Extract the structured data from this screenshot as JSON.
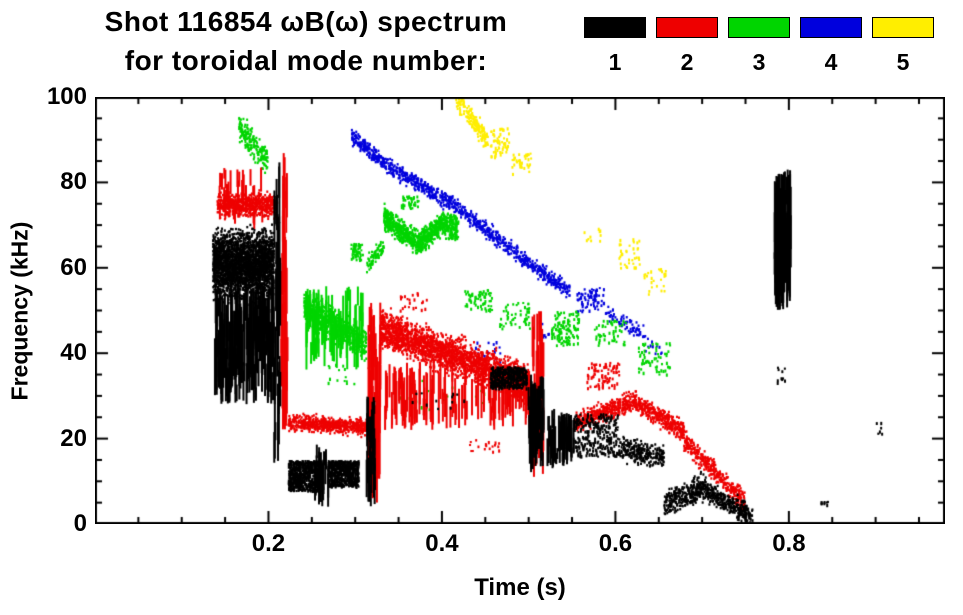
{
  "title_line1": "Shot 116854 ωB(ω) spectrum",
  "title_line2": "for toroidal mode number:",
  "legend": {
    "items": [
      {
        "label": "1",
        "color": "#000000"
      },
      {
        "label": "2",
        "color": "#ee0000"
      },
      {
        "label": "3",
        "color": "#00d500"
      },
      {
        "label": "4",
        "color": "#0000dd"
      },
      {
        "label": "5",
        "color": "#ffee00"
      }
    ]
  },
  "chart_data": {
    "type": "scatter",
    "title": "Shot 116854 ωB(ω) spectrum for toroidal mode number 1-5",
    "xlabel": "Time (s)",
    "ylabel": "Frequency (kHz)",
    "xlim": [
      0,
      0.98
    ],
    "ylim": [
      0,
      100
    ],
    "xticks": [
      0.2,
      0.4,
      0.6,
      0.8
    ],
    "xtick_labels": [
      "0.2",
      "0.4",
      "0.6",
      "0.8"
    ],
    "yticks": [
      0,
      20,
      40,
      60,
      80,
      100
    ],
    "ytick_labels": [
      "0",
      "20",
      "40",
      "60",
      "80",
      "100"
    ],
    "x_minor_step": 0.05,
    "y_minor_step": 5,
    "grid": false,
    "legend_position": "top-right",
    "series": [
      {
        "name": "1",
        "color": "#000000"
      },
      {
        "name": "2",
        "color": "#ee0000"
      },
      {
        "name": "3",
        "color": "#00d500"
      },
      {
        "name": "4",
        "color": "#0000dd"
      },
      {
        "name": "5",
        "color": "#ffee00"
      }
    ],
    "clusters": [
      {
        "s": 0,
        "kind": "band",
        "t": [
          0.135,
          0.205
        ],
        "f": [
          61,
          61
        ],
        "sp": 7,
        "n": 2800
      },
      {
        "s": 0,
        "kind": "vlines",
        "t": [
          0.137,
          0.205
        ],
        "f": [
          28,
          56
        ],
        "n": 240,
        "seg": [
          3,
          14
        ]
      },
      {
        "s": 0,
        "kind": "vlines",
        "t": [
          0.205,
          0.213
        ],
        "f": [
          12,
          85
        ],
        "n": 36,
        "seg": [
          4,
          18
        ]
      },
      {
        "s": 0,
        "kind": "blob",
        "t": [
          0.222,
          0.262
        ],
        "f": [
          8,
          15
        ],
        "n": 650
      },
      {
        "s": 0,
        "kind": "blob",
        "t": [
          0.268,
          0.303
        ],
        "f": [
          9,
          15
        ],
        "n": 560
      },
      {
        "s": 0,
        "kind": "vlines",
        "t": [
          0.252,
          0.268
        ],
        "f": [
          4,
          19
        ],
        "n": 26,
        "seg": [
          2,
          8
        ]
      },
      {
        "s": 0,
        "kind": "vlines",
        "t": [
          0.312,
          0.322
        ],
        "f": [
          4,
          30
        ],
        "n": 34,
        "seg": [
          3,
          10
        ]
      },
      {
        "s": 0,
        "kind": "blob",
        "t": [
          0.455,
          0.497
        ],
        "f": [
          32,
          37
        ],
        "n": 420
      },
      {
        "s": 0,
        "kind": "vlines",
        "t": [
          0.498,
          0.516
        ],
        "f": [
          12,
          35
        ],
        "n": 55,
        "seg": [
          3,
          12
        ]
      },
      {
        "s": 0,
        "kind": "vlines",
        "t": [
          0.52,
          0.552
        ],
        "f": [
          13,
          27
        ],
        "n": 60,
        "seg": [
          2,
          9
        ]
      },
      {
        "s": 0,
        "kind": "blob",
        "t": [
          0.552,
          0.602
        ],
        "f": [
          16,
          26
        ],
        "n": 260
      },
      {
        "s": 0,
        "kind": "band",
        "t": [
          0.602,
          0.655
        ],
        "f": [
          18,
          16
        ],
        "sp": 2.5,
        "n": 280
      },
      {
        "s": 0,
        "kind": "band",
        "t": [
          0.655,
          0.703
        ],
        "f": [
          5,
          9
        ],
        "sp": 2.8,
        "n": 330
      },
      {
        "s": 0,
        "kind": "band",
        "t": [
          0.703,
          0.757
        ],
        "f": [
          8,
          2
        ],
        "sp": 2.4,
        "n": 330
      },
      {
        "s": 0,
        "kind": "vlines",
        "t": [
          0.782,
          0.801
        ],
        "f": [
          50,
          83
        ],
        "n": 120,
        "seg": [
          5,
          22
        ]
      },
      {
        "s": 0,
        "kind": "blob",
        "t": [
          0.785,
          0.795
        ],
        "f": [
          33,
          37
        ],
        "n": 10
      },
      {
        "s": 0,
        "kind": "blob",
        "t": [
          0.836,
          0.845
        ],
        "f": [
          3,
          6
        ],
        "n": 8
      },
      {
        "s": 0,
        "kind": "blob",
        "t": [
          0.36,
          0.43
        ],
        "f": [
          27,
          31
        ],
        "n": 12
      },
      {
        "s": 0,
        "kind": "blob",
        "t": [
          0.9,
          0.915
        ],
        "f": [
          21,
          24
        ],
        "n": 6
      },
      {
        "s": 1,
        "kind": "band",
        "t": [
          0.14,
          0.209
        ],
        "f": [
          75,
          75
        ],
        "sp": 2.6,
        "n": 650
      },
      {
        "s": 1,
        "kind": "vlines",
        "t": [
          0.142,
          0.195
        ],
        "f": [
          69,
          84
        ],
        "n": 40,
        "seg": [
          2,
          6
        ]
      },
      {
        "s": 1,
        "kind": "vlines",
        "t": [
          0.213,
          0.221
        ],
        "f": [
          20,
          87
        ],
        "n": 46,
        "seg": [
          4,
          18
        ]
      },
      {
        "s": 1,
        "kind": "band",
        "t": [
          0.222,
          0.312
        ],
        "f": [
          24,
          23
        ],
        "sp": 1.7,
        "n": 620
      },
      {
        "s": 1,
        "kind": "vlines",
        "t": [
          0.314,
          0.328
        ],
        "f": [
          5,
          52
        ],
        "n": 70,
        "seg": [
          5,
          20
        ]
      },
      {
        "s": 1,
        "kind": "band",
        "t": [
          0.328,
          0.5
        ],
        "f": [
          46,
          33
        ],
        "sp": 4,
        "n": 2400
      },
      {
        "s": 1,
        "kind": "vlines",
        "t": [
          0.332,
          0.5
        ],
        "f": [
          22,
          38
        ],
        "n": 130,
        "seg": [
          3,
          12
        ]
      },
      {
        "s": 1,
        "kind": "blob",
        "t": [
          0.34,
          0.385
        ],
        "f": [
          50,
          55
        ],
        "n": 24
      },
      {
        "s": 1,
        "kind": "vlines",
        "t": [
          0.503,
          0.516
        ],
        "f": [
          10,
          50
        ],
        "n": 44,
        "seg": [
          4,
          14
        ]
      },
      {
        "s": 1,
        "kind": "band",
        "t": [
          0.553,
          0.62
        ],
        "f": [
          24,
          29
        ],
        "sp": 2.1,
        "n": 400
      },
      {
        "s": 1,
        "kind": "band",
        "t": [
          0.62,
          0.678
        ],
        "f": [
          29,
          22
        ],
        "sp": 2.1,
        "n": 380
      },
      {
        "s": 1,
        "kind": "blob",
        "t": [
          0.565,
          0.605
        ],
        "f": [
          32,
          38
        ],
        "n": 80
      },
      {
        "s": 1,
        "kind": "band",
        "t": [
          0.678,
          0.748
        ],
        "f": [
          20,
          5
        ],
        "sp": 2.4,
        "n": 380
      },
      {
        "s": 1,
        "kind": "blob",
        "t": [
          0.43,
          0.465
        ],
        "f": [
          17,
          20
        ],
        "n": 18
      },
      {
        "s": 2,
        "kind": "band",
        "t": [
          0.165,
          0.198
        ],
        "f": [
          93,
          85
        ],
        "sp": 3,
        "n": 200
      },
      {
        "s": 2,
        "kind": "band",
        "t": [
          0.24,
          0.312
        ],
        "f": [
          51,
          42
        ],
        "sp": 3.5,
        "n": 650
      },
      {
        "s": 2,
        "kind": "vlines",
        "t": [
          0.242,
          0.31
        ],
        "f": [
          36,
          56
        ],
        "n": 80,
        "seg": [
          3,
          12
        ]
      },
      {
        "s": 2,
        "kind": "blob",
        "t": [
          0.294,
          0.308
        ],
        "f": [
          62,
          66
        ],
        "n": 55
      },
      {
        "s": 2,
        "kind": "band",
        "t": [
          0.312,
          0.332
        ],
        "f": [
          61,
          65
        ],
        "sp": 1.8,
        "n": 80
      },
      {
        "s": 2,
        "kind": "band",
        "t": [
          0.332,
          0.372
        ],
        "f": [
          72,
          66
        ],
        "sp": 2.4,
        "n": 460
      },
      {
        "s": 2,
        "kind": "band",
        "t": [
          0.372,
          0.402
        ],
        "f": [
          66,
          71
        ],
        "sp": 2.4,
        "n": 380
      },
      {
        "s": 2,
        "kind": "blob",
        "t": [
          0.402,
          0.418
        ],
        "f": [
          67,
          73
        ],
        "n": 130
      },
      {
        "s": 2,
        "kind": "blob",
        "t": [
          0.352,
          0.372
        ],
        "f": [
          74,
          77
        ],
        "n": 36
      },
      {
        "s": 2,
        "kind": "blob",
        "t": [
          0.425,
          0.457
        ],
        "f": [
          50,
          55
        ],
        "n": 60
      },
      {
        "s": 2,
        "kind": "blob",
        "t": [
          0.465,
          0.502
        ],
        "f": [
          46,
          52
        ],
        "n": 50
      },
      {
        "s": 2,
        "kind": "blob",
        "t": [
          0.525,
          0.557
        ],
        "f": [
          42,
          50
        ],
        "n": 110
      },
      {
        "s": 2,
        "kind": "blob",
        "t": [
          0.575,
          0.612
        ],
        "f": [
          42,
          48
        ],
        "n": 50
      },
      {
        "s": 2,
        "kind": "blob",
        "t": [
          0.625,
          0.662
        ],
        "f": [
          35,
          43
        ],
        "n": 60
      },
      {
        "s": 2,
        "kind": "blob",
        "t": [
          0.35,
          0.45
        ],
        "f": [
          27,
          34
        ],
        "n": 16
      },
      {
        "s": 2,
        "kind": "blob",
        "t": [
          0.265,
          0.3
        ],
        "f": [
          33,
          38
        ],
        "n": 14
      },
      {
        "s": 3,
        "kind": "band",
        "t": [
          0.295,
          0.345
        ],
        "f": [
          91,
          83
        ],
        "sp": 1.8,
        "n": 230
      },
      {
        "s": 3,
        "kind": "band",
        "t": [
          0.345,
          0.42
        ],
        "f": [
          83,
          74
        ],
        "sp": 1.8,
        "n": 300
      },
      {
        "s": 3,
        "kind": "band",
        "t": [
          0.42,
          0.5
        ],
        "f": [
          74,
          61
        ],
        "sp": 1.8,
        "n": 300
      },
      {
        "s": 3,
        "kind": "band",
        "t": [
          0.5,
          0.547
        ],
        "f": [
          61,
          55
        ],
        "sp": 1.8,
        "n": 180
      },
      {
        "s": 3,
        "kind": "blob",
        "t": [
          0.555,
          0.587
        ],
        "f": [
          50,
          56
        ],
        "n": 70
      },
      {
        "s": 3,
        "kind": "band",
        "t": [
          0.587,
          0.637
        ],
        "f": [
          50,
          44
        ],
        "sp": 1.8,
        "n": 80
      },
      {
        "s": 3,
        "kind": "blob",
        "t": [
          0.435,
          0.467
        ],
        "f": [
          38,
          43
        ],
        "n": 22
      },
      {
        "s": 3,
        "kind": "blob",
        "t": [
          0.51,
          0.527
        ],
        "f": [
          44,
          48
        ],
        "n": 10
      },
      {
        "s": 3,
        "kind": "blob",
        "t": [
          0.632,
          0.657
        ],
        "f": [
          40,
          44
        ],
        "n": 10
      },
      {
        "s": 4,
        "kind": "band",
        "t": [
          0.415,
          0.452
        ],
        "f": [
          100,
          90
        ],
        "sp": 2.2,
        "n": 180
      },
      {
        "s": 4,
        "kind": "blob",
        "t": [
          0.455,
          0.477
        ],
        "f": [
          86,
          93
        ],
        "n": 55
      },
      {
        "s": 4,
        "kind": "blob",
        "t": [
          0.48,
          0.502
        ],
        "f": [
          82,
          87
        ],
        "n": 36
      },
      {
        "s": 4,
        "kind": "blob",
        "t": [
          0.602,
          0.627
        ],
        "f": [
          60,
          67
        ],
        "n": 36
      },
      {
        "s": 4,
        "kind": "blob",
        "t": [
          0.632,
          0.657
        ],
        "f": [
          54,
          60
        ],
        "n": 26
      },
      {
        "s": 4,
        "kind": "blob",
        "t": [
          0.558,
          0.582
        ],
        "f": [
          66,
          70
        ],
        "n": 10
      }
    ]
  }
}
